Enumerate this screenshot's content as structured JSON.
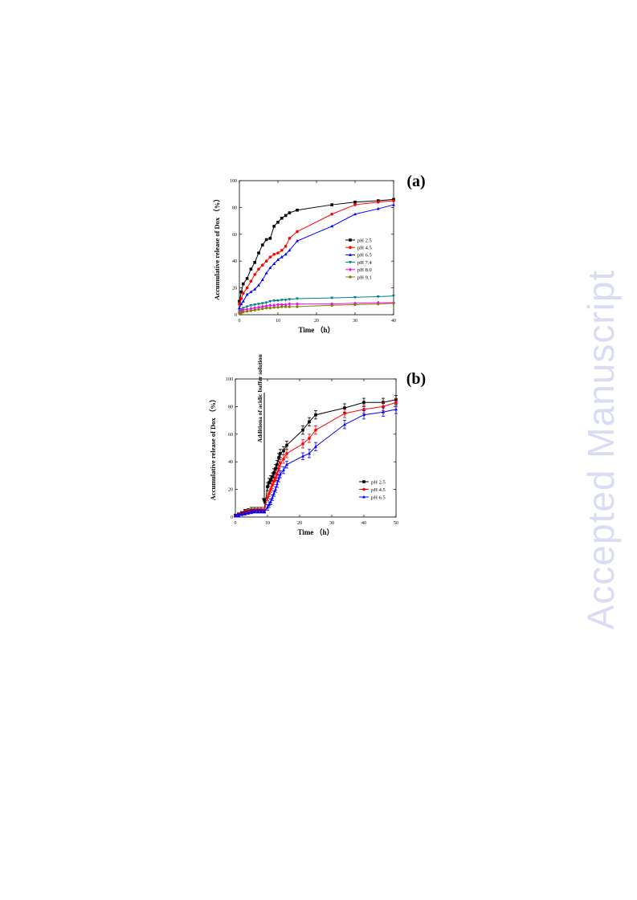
{
  "watermark": "Accepted Manuscript",
  "chart_data": [
    {
      "type": "line",
      "panel_label": "(a)",
      "xlabel": "Time （h）",
      "ylabel": "Accumulative release of Dox （%）",
      "xlim": [
        0,
        40
      ],
      "ylim": [
        0,
        100
      ],
      "xticks": [
        0,
        10,
        20,
        30,
        40
      ],
      "yticks": [
        0,
        20,
        40,
        60,
        80,
        100
      ],
      "legend_position": "right",
      "series": [
        {
          "name": "pH 2.5",
          "color": "#000000",
          "marker": "square",
          "x": [
            0,
            0.5,
            1,
            2,
            3,
            4,
            5,
            6,
            7,
            8,
            9,
            10,
            11,
            12,
            13,
            15,
            24,
            30,
            36,
            40
          ],
          "y": [
            10,
            17,
            23,
            27,
            34,
            39,
            46,
            52,
            56,
            57,
            66,
            69,
            72,
            74,
            76,
            78,
            82,
            84,
            85,
            86
          ]
        },
        {
          "name": "pH 4.5",
          "color": "#ff0000",
          "marker": "circle",
          "x": [
            0,
            0.5,
            1,
            2,
            3,
            4,
            5,
            6,
            7,
            8,
            9,
            10,
            11,
            12,
            13,
            15,
            24,
            30,
            36,
            40
          ],
          "y": [
            8,
            12,
            16,
            20,
            25,
            30,
            34,
            37,
            40,
            43,
            45,
            46,
            48,
            51,
            57,
            62,
            75,
            82,
            84,
            85
          ]
        },
        {
          "name": "pH 6.5",
          "color": "#0000ff",
          "marker": "triangle-up",
          "x": [
            0,
            0.5,
            1,
            2,
            3,
            4,
            5,
            6,
            7,
            8,
            9,
            10,
            11,
            12,
            13,
            15,
            24,
            30,
            36,
            40
          ],
          "y": [
            5,
            8,
            10,
            15,
            17,
            19,
            22,
            26,
            31,
            35,
            38,
            41,
            43,
            45,
            48,
            55,
            66,
            75,
            79,
            82
          ]
        },
        {
          "name": "pH 7.4",
          "color": "#008080",
          "marker": "triangle-down",
          "x": [
            0,
            0.5,
            1,
            2,
            3,
            4,
            5,
            6,
            7,
            8,
            9,
            10,
            11,
            12,
            13,
            15,
            24,
            30,
            36,
            40
          ],
          "y": [
            3,
            4,
            5,
            6,
            7,
            7.5,
            8,
            8.5,
            9,
            10,
            10.5,
            10.5,
            11,
            11,
            11.5,
            12,
            12.5,
            13,
            13.5,
            14
          ]
        },
        {
          "name": "pH 8.0",
          "color": "#ff00ff",
          "marker": "diamond",
          "x": [
            0,
            0.5,
            1,
            2,
            3,
            4,
            5,
            6,
            7,
            8,
            9,
            10,
            11,
            12,
            13,
            15,
            24,
            30,
            36,
            40
          ],
          "y": [
            2,
            3,
            3.5,
            4,
            4.5,
            5,
            5.5,
            6,
            6.5,
            7,
            7,
            7.5,
            7.5,
            7.5,
            8,
            8,
            8,
            8.5,
            9,
            9
          ]
        },
        {
          "name": "pH 9.1",
          "color": "#808000",
          "marker": "pentagon",
          "x": [
            0,
            0.5,
            1,
            2,
            3,
            4,
            5,
            6,
            7,
            8,
            9,
            10,
            11,
            12,
            13,
            15,
            24,
            30,
            36,
            40
          ],
          "y": [
            1,
            1.5,
            2,
            2.5,
            3,
            3.5,
            4,
            4.5,
            5,
            5,
            5.5,
            5.5,
            6,
            6,
            6,
            6,
            7,
            7.5,
            8,
            8.5
          ]
        }
      ]
    },
    {
      "type": "line",
      "panel_label": "(b)",
      "xlabel": "Time （h）",
      "ylabel": "Accumulative release of Dox （%）",
      "xlim": [
        0,
        50
      ],
      "ylim": [
        0,
        100
      ],
      "xticks": [
        0,
        10,
        20,
        30,
        40,
        50
      ],
      "yticks": [
        0,
        20,
        40,
        60,
        80,
        100
      ],
      "legend_position": "right",
      "annotation": {
        "text": "Additiona of acidic buffer solution",
        "x": 9,
        "y_top": 90,
        "y_bottom": 9
      },
      "series": [
        {
          "name": "pH 2.5",
          "color": "#000000",
          "marker": "square",
          "x": [
            0,
            1,
            2,
            3,
            4,
            5,
            6,
            7,
            8,
            9,
            10,
            10.5,
            11,
            11.5,
            12,
            12.5,
            13,
            13.5,
            14,
            15,
            16,
            21,
            23,
            25,
            34,
            40,
            46,
            50
          ],
          "y": [
            1,
            2,
            3,
            4,
            4.5,
            5,
            5,
            5,
            5,
            5,
            22,
            25,
            27,
            29,
            32,
            35,
            38,
            43,
            46,
            48,
            52,
            63,
            69,
            74,
            79,
            83,
            83,
            85
          ],
          "err": [
            1,
            1,
            1,
            1.5,
            1.5,
            2,
            2,
            2,
            2,
            2,
            3,
            3,
            3,
            3,
            3,
            3,
            3,
            3,
            3,
            3,
            3,
            3,
            3,
            3,
            3,
            3,
            3,
            3
          ]
        },
        {
          "name": "pH 4.5",
          "color": "#ff0000",
          "marker": "circle",
          "x": [
            0,
            1,
            2,
            3,
            4,
            5,
            6,
            7,
            8,
            9,
            10,
            10.5,
            11,
            11.5,
            12,
            12.5,
            13,
            13.5,
            14,
            15,
            16,
            21,
            23,
            25,
            34,
            40,
            46,
            50
          ],
          "y": [
            1,
            1.5,
            2.5,
            3,
            4,
            4,
            4.5,
            4.5,
            4.5,
            5,
            14,
            17,
            20,
            23,
            26,
            28,
            31,
            35,
            39,
            42,
            46,
            53,
            57,
            63,
            75,
            78,
            80,
            83
          ],
          "err": [
            1,
            1,
            1,
            1.5,
            1.5,
            1.5,
            1.5,
            1.5,
            1.5,
            2,
            2,
            2,
            2,
            2.5,
            2.5,
            2.5,
            2.5,
            2.5,
            2.5,
            3,
            3,
            3,
            3,
            3,
            3,
            3,
            3,
            3
          ]
        },
        {
          "name": "pH 6.5",
          "color": "#0000ff",
          "marker": "triangle-up",
          "x": [
            0,
            1,
            2,
            3,
            4,
            5,
            6,
            7,
            8,
            9,
            10,
            10.5,
            11,
            11.5,
            12,
            12.5,
            13,
            13.5,
            14,
            15,
            16,
            21,
            23,
            25,
            34,
            40,
            46,
            50
          ],
          "y": [
            1,
            1,
            2,
            2.5,
            3,
            3.5,
            4,
            4,
            4,
            4,
            7,
            9,
            11,
            14,
            17,
            20,
            24,
            28,
            31,
            34,
            38,
            44,
            46,
            51,
            67,
            74,
            76,
            78
          ],
          "err": [
            1,
            1,
            1,
            1,
            1,
            1,
            1,
            1,
            1,
            1,
            2,
            2,
            2,
            2,
            2,
            2,
            2.5,
            2.5,
            2.5,
            2.5,
            2.5,
            2.5,
            3,
            3,
            3,
            3,
            3,
            3
          ]
        }
      ]
    }
  ]
}
